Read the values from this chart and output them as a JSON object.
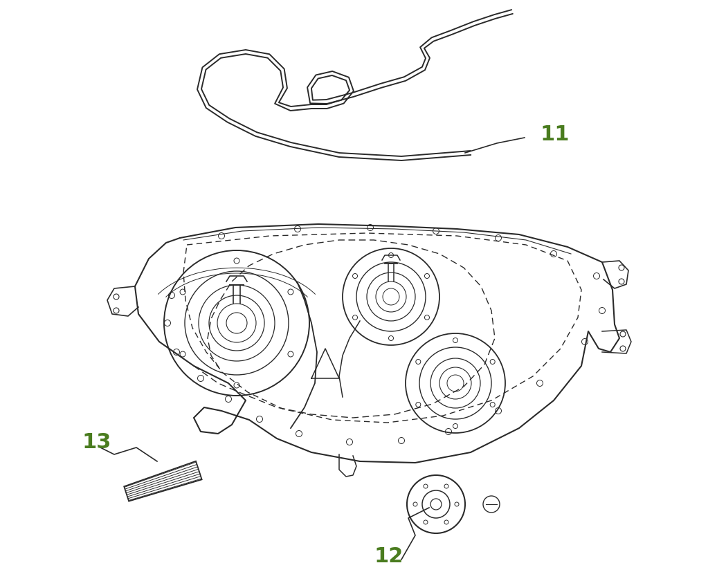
{
  "background_color": "#ffffff",
  "label_color": "#4a7c1f",
  "line_color": "#2a2a2a",
  "label_11": "11",
  "label_12": "12",
  "label_13": "13",
  "label_fontsize": 22,
  "fig_width": 10.36,
  "fig_height": 8.28
}
